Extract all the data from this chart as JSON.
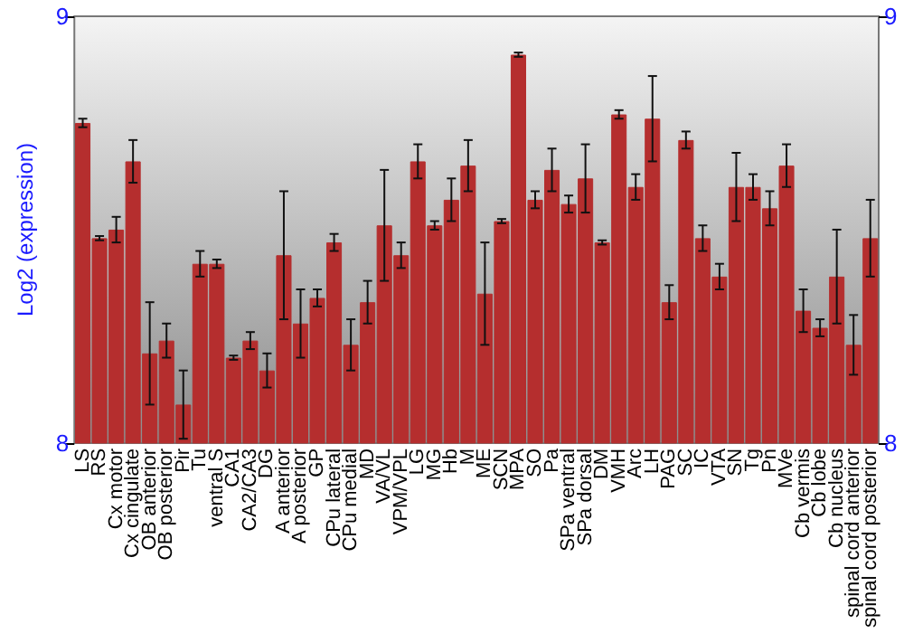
{
  "chart_data": {
    "type": "bar",
    "ylabel": "Log2 (expression)",
    "categories": [
      "LS",
      "RS",
      "Cx motor",
      "Cx cingulate",
      "OB anterior",
      "OB posterior",
      "Pir",
      "Tu",
      "ventral S",
      "CA1",
      "CA2/CA3",
      "DG",
      "A anterior",
      "A posterior",
      "GP",
      "CPu lateral",
      "CPu medial",
      "MD",
      "VA/VL",
      "VPM/VPL",
      "LG",
      "MG",
      "Hb",
      "M",
      "ME",
      "SCN",
      "MPA",
      "SO",
      "Pa",
      "SPa ventral",
      "SPa dorsal",
      "DM",
      "VMH",
      "Arc",
      "LH",
      "PAG",
      "SC",
      "IC",
      "VTA",
      "SN",
      "Tg",
      "Pn",
      "MVe",
      "Cb vermis",
      "Cb lobe",
      "Cb nucleus",
      "spinal cord anterior",
      "spinal cord posterior"
    ],
    "values": [
      8.75,
      8.48,
      8.5,
      8.66,
      8.21,
      8.24,
      8.09,
      8.42,
      8.42,
      8.2,
      8.24,
      8.17,
      8.44,
      8.28,
      8.34,
      8.47,
      8.23,
      8.33,
      8.51,
      8.44,
      8.66,
      8.51,
      8.57,
      8.65,
      8.35,
      8.52,
      8.91,
      8.57,
      8.64,
      8.56,
      8.62,
      8.47,
      8.77,
      8.6,
      8.76,
      8.33,
      8.71,
      8.48,
      8.39,
      8.6,
      8.6,
      8.55,
      8.65,
      8.31,
      8.27,
      8.39,
      8.23,
      8.48
    ],
    "errors": [
      0.01,
      0.005,
      0.03,
      0.05,
      0.12,
      0.04,
      0.08,
      0.03,
      0.01,
      0.005,
      0.02,
      0.04,
      0.15,
      0.08,
      0.02,
      0.02,
      0.06,
      0.05,
      0.13,
      0.03,
      0.04,
      0.01,
      0.05,
      0.06,
      0.12,
      0.005,
      0.005,
      0.02,
      0.05,
      0.02,
      0.08,
      0.005,
      0.01,
      0.03,
      0.1,
      0.04,
      0.02,
      0.03,
      0.03,
      0.08,
      0.03,
      0.04,
      0.05,
      0.05,
      0.02,
      0.11,
      0.07,
      0.09
    ],
    "color": "#b52e2e",
    "ylim": [
      8,
      9
    ],
    "yticks": [
      8,
      9
    ],
    "y2lim": [
      8,
      9
    ],
    "y2ticks": [
      8,
      9
    ],
    "grid": false
  }
}
